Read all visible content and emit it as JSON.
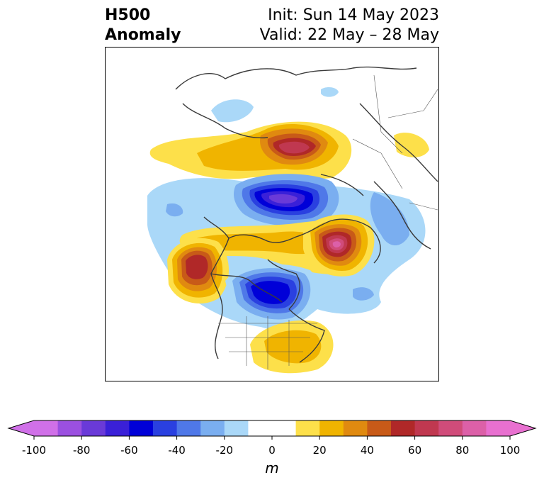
{
  "title": {
    "left_line1": "H500",
    "left_line2": "Anomaly",
    "right_line1": "Init: Sun 14 May 2023",
    "right_line2": "Valid: 22 May – 28 May"
  },
  "colorbar": {
    "label": "m",
    "ticks": [
      "-100",
      "-80",
      "-60",
      "-40",
      "-20",
      "0",
      "20",
      "40",
      "60",
      "80",
      "100"
    ],
    "levels": [
      -100,
      -90,
      -80,
      -70,
      -60,
      -50,
      -40,
      -30,
      -20,
      -10,
      10,
      20,
      30,
      40,
      50,
      60,
      70,
      80,
      90,
      100
    ],
    "colors": [
      "#d070e8",
      "#9b50e0",
      "#6a3ad8",
      "#3a20d8",
      "#0000d8",
      "#2a40e0",
      "#4f78e8",
      "#7aaef0",
      "#aad8f8",
      "#ffffff",
      "#fde04a",
      "#f0b400",
      "#e08a10",
      "#c85a18",
      "#b02828",
      "#c03850",
      "#d04c7a",
      "#dc60a8",
      "#e870d0"
    ],
    "extend_low_color": "#d070e8",
    "extend_high_color": "#e870d0"
  },
  "map": {
    "region": "Northern Hemisphere polar stereographic",
    "anomalies": [
      {
        "name": "central-siberia-ridge",
        "value": 60
      },
      {
        "name": "arctic-trough",
        "value": -70
      },
      {
        "name": "greenland-ridge",
        "value": 80
      },
      {
        "name": "alaska-ridge",
        "value": 60
      },
      {
        "name": "hudson-bay-trough",
        "value": -60
      },
      {
        "name": "southeast-us-ridge",
        "value": 30
      }
    ]
  }
}
